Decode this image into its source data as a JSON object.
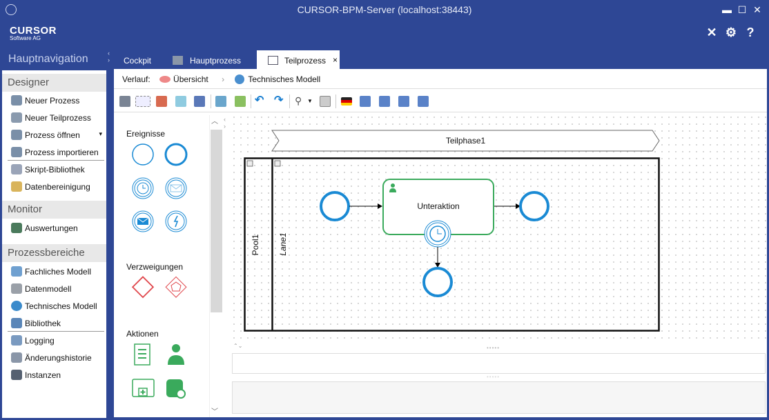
{
  "window": {
    "title": "CURSOR-BPM-Server (localhost:38443)",
    "minimize": "▬",
    "maximize": "☐",
    "close": "✕"
  },
  "header": {
    "logo": "CURSOR",
    "logo_sub": "Software AG",
    "tools_icon": "✕",
    "plugins_icon": "⚙",
    "help": "?"
  },
  "sidebar": {
    "title": "Hauptnavigation",
    "sections": [
      {
        "label": "Designer",
        "items": [
          {
            "label": "Neuer Prozess"
          },
          {
            "label": "Neuer Teilprozess"
          },
          {
            "label": "Prozess öffnen",
            "dropdown": "▾"
          },
          {
            "label": "Prozess importieren"
          },
          {
            "label": "Skript-Bibliothek"
          },
          {
            "label": "Datenbereinigung"
          }
        ]
      },
      {
        "label": "Monitor",
        "items": [
          {
            "label": "Auswertungen"
          }
        ]
      },
      {
        "label": "Prozessbereiche",
        "items": [
          {
            "label": "Fachliches Modell"
          },
          {
            "label": "Datenmodell"
          },
          {
            "label": "Technisches Modell"
          },
          {
            "label": "Bibliothek"
          },
          {
            "label": "Logging"
          },
          {
            "label": "Änderungshistorie"
          },
          {
            "label": "Instanzen"
          }
        ]
      }
    ]
  },
  "tabs": [
    {
      "label": "Cockpit"
    },
    {
      "label": "Hauptprozess"
    },
    {
      "label": "Teilprozess",
      "active": true,
      "close": "×"
    }
  ],
  "breadcrumb": {
    "label": "Verlauf:",
    "items": [
      "Übersicht",
      "Technisches Modell"
    ],
    "separator": "›"
  },
  "palette": {
    "groups": [
      "Ereignisse",
      "Verzweigungen",
      "Aktionen"
    ]
  },
  "diagram": {
    "phase": "Teilphase1",
    "pool": "Pool1",
    "lane": "Lane1",
    "task": "Unteraktion"
  },
  "colors": {
    "brand": "#2e4795",
    "event": "#1a8ad4",
    "gateway": "#e0474c",
    "task": "#3aaa5c"
  }
}
